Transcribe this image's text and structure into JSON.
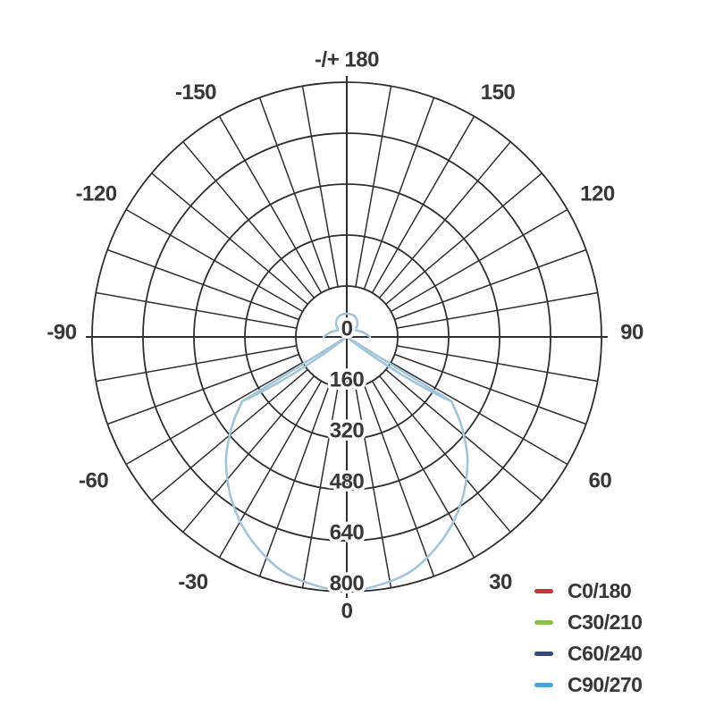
{
  "page": {
    "background": "#ffffff"
  },
  "chart_data": {
    "type": "polar",
    "subtype": "photometric-luminous-intensity-distribution",
    "title": "",
    "angle_unit": "deg",
    "grid": {
      "on": true,
      "ring_values": [
        160,
        320,
        480,
        640,
        800
      ],
      "spoke_step_deg": 10,
      "line_color": "#2e2e2e",
      "axis_color": "#2e2e2e"
    },
    "radial_ticks": [
      "0",
      "160",
      "320",
      "480",
      "640",
      "800"
    ],
    "radial_tick_values": [
      0,
      160,
      320,
      480,
      640,
      800
    ],
    "radial_max": 800,
    "angle_labels": [
      {
        "angle": 180,
        "label": "-/+ 180"
      },
      {
        "angle": -150,
        "label": "-150"
      },
      {
        "angle": 150,
        "label": "150"
      },
      {
        "angle": -120,
        "label": "-120"
      },
      {
        "angle": 120,
        "label": "120"
      },
      {
        "angle": -90,
        "label": "-90"
      },
      {
        "angle": 90,
        "label": "90"
      },
      {
        "angle": -60,
        "label": "-60"
      },
      {
        "angle": 60,
        "label": "60"
      },
      {
        "angle": -30,
        "label": "-30"
      },
      {
        "angle": 30,
        "label": "30"
      },
      {
        "angle": 0,
        "label": "0"
      }
    ],
    "legend": {
      "position": "bottom-right",
      "items": [
        {
          "label": "C0/180",
          "color": "#c13a36"
        },
        {
          "label": "C30/210",
          "color": "#8cbf52"
        },
        {
          "label": "C60/240",
          "color": "#2c4a7b"
        },
        {
          "label": "C90/270",
          "color": "#46a3da"
        }
      ]
    },
    "visible_curve": {
      "series": "C90/270",
      "stroke": "#a1c5d7",
      "note": "all C-plane curves coincide; topmost light-blue C90/270 trace is the one visible",
      "symmetric": true,
      "main_lobe_polar_points": [
        [
          0,
          797
        ],
        [
          7,
          787
        ],
        [
          16,
          760
        ],
        [
          26,
          699
        ],
        [
          35,
          629
        ],
        [
          44,
          546
        ],
        [
          50,
          480
        ],
        [
          54,
          435
        ],
        [
          58.4,
          386
        ]
      ],
      "side_spike": {
        "theta_deg": 58.4,
        "value": 386
      },
      "back_lobe": {
        "theta_deg": 180,
        "peak_value": 76,
        "half_width_value": 37
      },
      "horizontal_flare_value": 73
    }
  }
}
